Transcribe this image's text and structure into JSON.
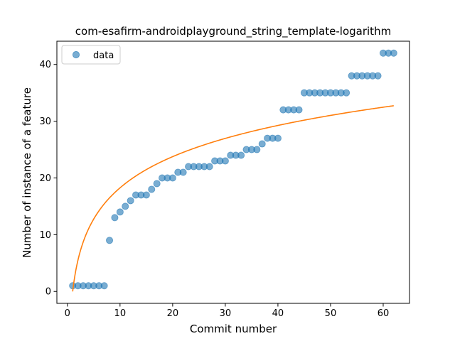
{
  "chart_data": {
    "type": "scatter",
    "title": "com-esafirm-androidplayground_string_template-logarithm",
    "xlabel": "Commit number",
    "ylabel": "Number of instance of a feature",
    "xlim": [
      -2,
      65
    ],
    "ylim": [
      -2.1,
      44.1
    ],
    "xticks": [
      0,
      10,
      20,
      30,
      40,
      50,
      60
    ],
    "yticks": [
      0,
      10,
      20,
      30,
      40
    ],
    "legend": {
      "placement": "upper-left",
      "entries": [
        "data"
      ]
    },
    "grid": false,
    "colors": {
      "scatter": "#1f77b4",
      "fit": "#ff7f0e"
    },
    "series": [
      {
        "name": "data",
        "kind": "scatter",
        "x": [
          1,
          2,
          3,
          4,
          5,
          6,
          7,
          8,
          9,
          10,
          11,
          12,
          13,
          14,
          15,
          16,
          17,
          18,
          19,
          20,
          21,
          22,
          23,
          24,
          25,
          26,
          27,
          28,
          29,
          30,
          31,
          32,
          33,
          34,
          35,
          36,
          37,
          38,
          39,
          40,
          41,
          42,
          43,
          44,
          45,
          46,
          47,
          48,
          49,
          50,
          51,
          52,
          53,
          54,
          55,
          56,
          57,
          58,
          59,
          60,
          61,
          62
        ],
        "y": [
          1,
          1,
          1,
          1,
          1,
          1,
          1,
          9,
          13,
          14,
          15,
          16,
          17,
          17,
          17,
          18,
          19,
          20,
          20,
          20,
          21,
          21,
          22,
          22,
          22,
          22,
          22,
          23,
          23,
          23,
          24,
          24,
          24,
          25,
          25,
          25,
          26,
          27,
          27,
          27,
          32,
          32,
          32,
          32,
          35,
          35,
          35,
          35,
          35,
          35,
          35,
          35,
          35,
          38,
          38,
          38,
          38,
          38,
          38,
          42,
          42,
          42
        ]
      },
      {
        "kind": "line",
        "fit": {
          "model": "a*ln(x)+b",
          "a": 7.93,
          "b": 0.0
        },
        "x_range": [
          1,
          62
        ]
      }
    ]
  }
}
